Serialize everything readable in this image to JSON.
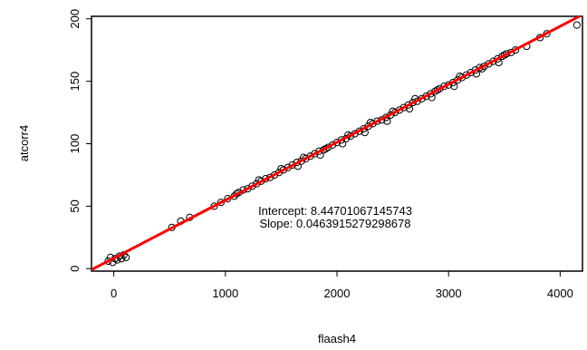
{
  "chart_data": {
    "type": "scatter",
    "title": "",
    "xlabel": "flaash4",
    "ylabel": "atcorr4",
    "xlim": [
      -200,
      4200
    ],
    "ylim": [
      -2,
      202
    ],
    "x_ticks": [
      0,
      1000,
      2000,
      3000,
      4000
    ],
    "y_ticks": [
      0,
      50,
      100,
      150,
      200
    ],
    "x_tick_labels": [
      "0",
      "1000",
      "2000",
      "3000",
      "4000"
    ],
    "y_tick_labels": [
      "0",
      "50",
      "100",
      "150",
      "200"
    ],
    "grid": false,
    "legend": "none",
    "point_color": "#000000",
    "fit_line_color": "#ff0000",
    "fit": {
      "intercept": 8.44701067145743,
      "slope": 0.0463915279298678
    },
    "annotations": [
      "Intercept: 8.44701067145743",
      "Slope: 0.0463915279298678"
    ],
    "points": [
      [
        -50,
        6
      ],
      [
        -30,
        9
      ],
      [
        -10,
        5
      ],
      [
        10,
        8
      ],
      [
        30,
        7
      ],
      [
        50,
        10
      ],
      [
        70,
        8
      ],
      [
        90,
        11
      ],
      [
        110,
        9
      ],
      [
        520,
        33
      ],
      [
        600,
        38
      ],
      [
        680,
        41
      ],
      [
        900,
        50
      ],
      [
        960,
        53
      ],
      [
        1020,
        56
      ],
      [
        1080,
        58
      ],
      [
        1120,
        61
      ],
      [
        1160,
        63
      ],
      [
        1200,
        64
      ],
      [
        1240,
        66
      ],
      [
        1280,
        68
      ],
      [
        1320,
        70
      ],
      [
        1360,
        72
      ],
      [
        1400,
        73
      ],
      [
        1440,
        75
      ],
      [
        1480,
        77
      ],
      [
        1520,
        79
      ],
      [
        1560,
        81
      ],
      [
        1600,
        83
      ],
      [
        1640,
        85
      ],
      [
        1680,
        86
      ],
      [
        1720,
        88
      ],
      [
        1760,
        90
      ],
      [
        1800,
        92
      ],
      [
        1840,
        94
      ],
      [
        1880,
        95
      ],
      [
        1920,
        97
      ],
      [
        1960,
        99
      ],
      [
        2000,
        101
      ],
      [
        2040,
        103
      ],
      [
        2080,
        104
      ],
      [
        2120,
        106
      ],
      [
        2160,
        108
      ],
      [
        2200,
        110
      ],
      [
        2240,
        112
      ],
      [
        2280,
        114
      ],
      [
        2320,
        116
      ],
      [
        2360,
        118
      ],
      [
        2400,
        119
      ],
      [
        2440,
        121
      ],
      [
        2480,
        123
      ],
      [
        2520,
        125
      ],
      [
        2560,
        127
      ],
      [
        2600,
        129
      ],
      [
        2640,
        131
      ],
      [
        2680,
        133
      ],
      [
        2720,
        134
      ],
      [
        2760,
        136
      ],
      [
        2800,
        138
      ],
      [
        2840,
        140
      ],
      [
        2880,
        142
      ],
      [
        2920,
        144
      ],
      [
        2960,
        146
      ],
      [
        3000,
        147
      ],
      [
        3040,
        149
      ],
      [
        3080,
        151
      ],
      [
        3120,
        153
      ],
      [
        3160,
        155
      ],
      [
        3200,
        157
      ],
      [
        3240,
        159
      ],
      [
        3280,
        161
      ],
      [
        3320,
        162
      ],
      [
        3360,
        164
      ],
      [
        3400,
        166
      ],
      [
        3440,
        168
      ],
      [
        3480,
        170
      ],
      [
        3520,
        172
      ],
      [
        3560,
        173
      ],
      [
        3600,
        175
      ],
      [
        3820,
        185
      ],
      [
        3880,
        188
      ],
      [
        4150,
        195
      ],
      [
        1100,
        60
      ],
      [
        1300,
        71
      ],
      [
        1500,
        80
      ],
      [
        1700,
        89
      ],
      [
        1900,
        96
      ],
      [
        2100,
        107
      ],
      [
        2300,
        117
      ],
      [
        2500,
        126
      ],
      [
        2700,
        136
      ],
      [
        2900,
        143
      ],
      [
        3100,
        154
      ],
      [
        3300,
        160
      ],
      [
        3500,
        171
      ],
      [
        3700,
        178
      ],
      [
        1650,
        82
      ],
      [
        1850,
        91
      ],
      [
        2050,
        100
      ],
      [
        2250,
        109
      ],
      [
        2450,
        118
      ],
      [
        2650,
        128
      ],
      [
        2850,
        137
      ],
      [
        3050,
        146
      ],
      [
        3250,
        156
      ],
      [
        3450,
        165
      ]
    ]
  }
}
